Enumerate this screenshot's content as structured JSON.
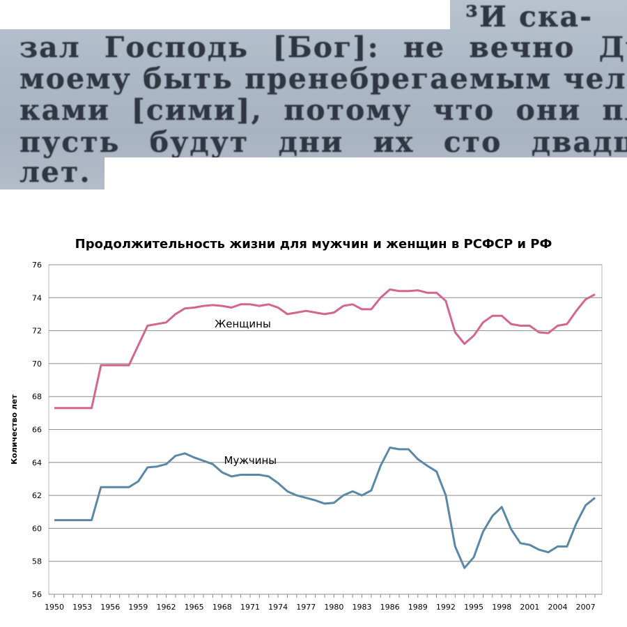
{
  "scan_text": {
    "lines": [
      "³И ска-",
      "зал Господь [Бог]: не вечно Духу",
      "моему быть пренебрегаемым челове-",
      "ками [сими], потому что они плоть;",
      "пусть будут дни их сто двадцать",
      "лет."
    ]
  },
  "chart_data": {
    "type": "line",
    "title": "Продолжительность жизни для мужчин и женщин в РСФСР и РФ",
    "xlabel": "",
    "ylabel": "Количество лет",
    "ylim": [
      56,
      76
    ],
    "y_ticks": [
      56,
      58,
      60,
      62,
      64,
      66,
      68,
      70,
      72,
      74,
      76
    ],
    "xlim": [
      1950,
      2008
    ],
    "x_ticks": [
      1950,
      1953,
      1956,
      1959,
      1962,
      1965,
      1968,
      1971,
      1974,
      1977,
      1980,
      1983,
      1986,
      1989,
      1992,
      1995,
      1998,
      2001,
      2004,
      2007
    ],
    "grid": "horizontal",
    "series": [
      {
        "name": "Женщины",
        "color": "#d4658f",
        "points": [
          [
            1950,
            67.3
          ],
          [
            1954,
            67.3
          ],
          [
            1955,
            69.9
          ],
          [
            1958,
            69.9
          ],
          [
            1959,
            71.1
          ],
          [
            1960,
            72.3
          ],
          [
            1961,
            72.4
          ],
          [
            1962,
            72.5
          ],
          [
            1963,
            73.0
          ],
          [
            1964,
            73.35
          ],
          [
            1965,
            73.4
          ],
          [
            1966,
            73.5
          ],
          [
            1967,
            73.55
          ],
          [
            1968,
            73.5
          ],
          [
            1969,
            73.4
          ],
          [
            1970,
            73.6
          ],
          [
            1971,
            73.6
          ],
          [
            1972,
            73.5
          ],
          [
            1973,
            73.6
          ],
          [
            1974,
            73.4
          ],
          [
            1975,
            73.0
          ],
          [
            1976,
            73.1
          ],
          [
            1977,
            73.2
          ],
          [
            1978,
            73.1
          ],
          [
            1979,
            73.0
          ],
          [
            1980,
            73.1
          ],
          [
            1981,
            73.5
          ],
          [
            1982,
            73.6
          ],
          [
            1983,
            73.3
          ],
          [
            1984,
            73.3
          ],
          [
            1985,
            74.0
          ],
          [
            1986,
            74.5
          ],
          [
            1987,
            74.4
          ],
          [
            1988,
            74.4
          ],
          [
            1989,
            74.45
          ],
          [
            1990,
            74.3
          ],
          [
            1991,
            74.3
          ],
          [
            1992,
            73.8
          ],
          [
            1993,
            71.9
          ],
          [
            1994,
            71.2
          ],
          [
            1995,
            71.7
          ],
          [
            1996,
            72.5
          ],
          [
            1997,
            72.9
          ],
          [
            1998,
            72.9
          ],
          [
            1999,
            72.4
          ],
          [
            2000,
            72.3
          ],
          [
            2001,
            72.3
          ],
          [
            2002,
            71.9
          ],
          [
            2003,
            71.85
          ],
          [
            2004,
            72.3
          ],
          [
            2005,
            72.4
          ],
          [
            2006,
            73.2
          ],
          [
            2007,
            73.9
          ],
          [
            2008,
            74.2
          ]
        ]
      },
      {
        "name": "Мужчины",
        "color": "#5b87a7",
        "points": [
          [
            1950,
            60.5
          ],
          [
            1954,
            60.5
          ],
          [
            1955,
            62.5
          ],
          [
            1958,
            62.5
          ],
          [
            1959,
            62.85
          ],
          [
            1960,
            63.7
          ],
          [
            1961,
            63.75
          ],
          [
            1962,
            63.9
          ],
          [
            1963,
            64.4
          ],
          [
            1964,
            64.55
          ],
          [
            1965,
            64.3
          ],
          [
            1966,
            64.1
          ],
          [
            1967,
            63.9
          ],
          [
            1968,
            63.4
          ],
          [
            1969,
            63.15
          ],
          [
            1970,
            63.25
          ],
          [
            1971,
            63.25
          ],
          [
            1972,
            63.25
          ],
          [
            1973,
            63.15
          ],
          [
            1974,
            62.75
          ],
          [
            1975,
            62.25
          ],
          [
            1976,
            62.0
          ],
          [
            1977,
            61.85
          ],
          [
            1978,
            61.7
          ],
          [
            1979,
            61.5
          ],
          [
            1980,
            61.55
          ],
          [
            1981,
            62.0
          ],
          [
            1982,
            62.25
          ],
          [
            1983,
            62.0
          ],
          [
            1984,
            62.3
          ],
          [
            1985,
            63.8
          ],
          [
            1986,
            64.9
          ],
          [
            1987,
            64.8
          ],
          [
            1988,
            64.8
          ],
          [
            1989,
            64.2
          ],
          [
            1990,
            63.8
          ],
          [
            1991,
            63.45
          ],
          [
            1992,
            62.0
          ],
          [
            1993,
            58.9
          ],
          [
            1994,
            57.6
          ],
          [
            1995,
            58.25
          ],
          [
            1996,
            59.8
          ],
          [
            1997,
            60.75
          ],
          [
            1998,
            61.3
          ],
          [
            1999,
            59.95
          ],
          [
            2000,
            59.1
          ],
          [
            2001,
            59.0
          ],
          [
            2002,
            58.7
          ],
          [
            2003,
            58.55
          ],
          [
            2004,
            58.9
          ],
          [
            2005,
            58.9
          ],
          [
            2006,
            60.3
          ],
          [
            2007,
            61.4
          ],
          [
            2008,
            61.85
          ]
        ]
      }
    ]
  }
}
